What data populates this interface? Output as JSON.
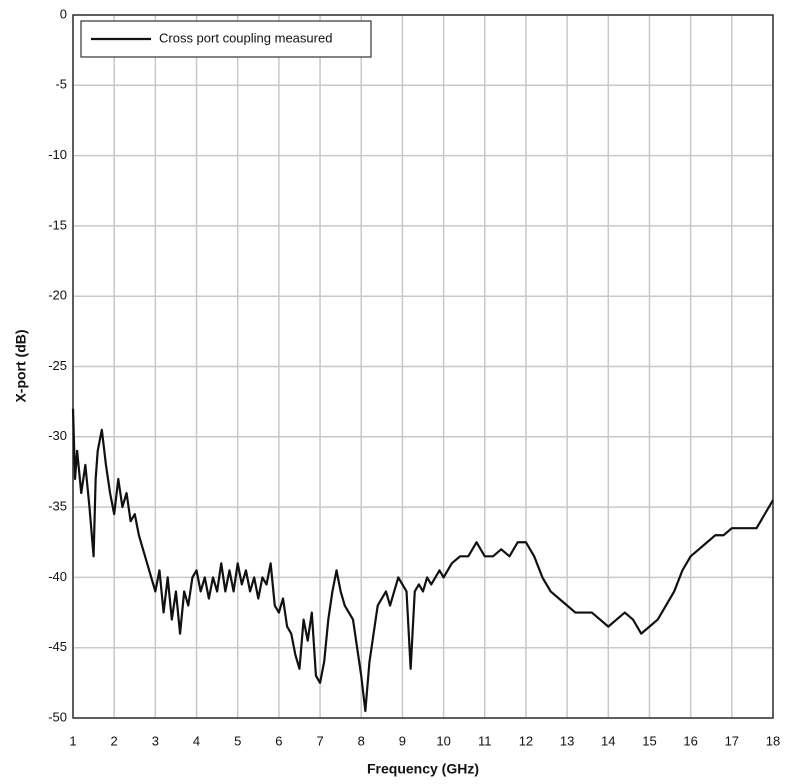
{
  "chart_data": {
    "type": "line",
    "xlabel": "Frequency (GHz)",
    "ylabel": "X-port (dB)",
    "x": [
      1.0,
      1.05,
      1.1,
      1.2,
      1.3,
      1.4,
      1.5,
      1.55,
      1.6,
      1.7,
      1.8,
      1.9,
      2.0,
      2.1,
      2.2,
      2.3,
      2.4,
      2.5,
      2.6,
      2.7,
      2.8,
      2.9,
      3.0,
      3.1,
      3.2,
      3.3,
      3.4,
      3.5,
      3.6,
      3.7,
      3.8,
      3.9,
      4.0,
      4.1,
      4.2,
      4.3,
      4.4,
      4.5,
      4.6,
      4.7,
      4.8,
      4.9,
      5.0,
      5.1,
      5.2,
      5.3,
      5.4,
      5.5,
      5.6,
      5.7,
      5.8,
      5.9,
      6.0,
      6.1,
      6.2,
      6.3,
      6.4,
      6.5,
      6.6,
      6.7,
      6.8,
      6.9,
      7.0,
      7.1,
      7.2,
      7.3,
      7.4,
      7.5,
      7.6,
      7.7,
      7.8,
      7.9,
      8.0,
      8.1,
      8.2,
      8.3,
      8.4,
      8.5,
      8.6,
      8.7,
      8.8,
      8.9,
      9.0,
      9.1,
      9.2,
      9.3,
      9.4,
      9.5,
      9.6,
      9.7,
      9.8,
      9.9,
      10.0,
      10.2,
      10.4,
      10.6,
      10.8,
      11.0,
      11.2,
      11.4,
      11.6,
      11.8,
      12.0,
      12.2,
      12.4,
      12.6,
      12.8,
      13.0,
      13.2,
      13.4,
      13.6,
      13.8,
      14.0,
      14.2,
      14.4,
      14.6,
      14.8,
      15.0,
      15.2,
      15.4,
      15.6,
      15.8,
      16.0,
      16.2,
      16.4,
      16.6,
      16.8,
      17.0,
      17.2,
      17.4,
      17.6,
      17.8,
      18.0
    ],
    "series": [
      {
        "name": "Cross port coupling measured",
        "color": "#111111",
        "values": [
          -28,
          -33,
          -31,
          -34,
          -32,
          -35,
          -38.5,
          -33,
          -31,
          -29.5,
          -32,
          -34,
          -35.5,
          -33,
          -35,
          -34,
          -36,
          -35.5,
          -37,
          -38,
          -39,
          -40,
          -41,
          -39.5,
          -42.5,
          -40,
          -43,
          -41,
          -44,
          -41,
          -42,
          -40,
          -39.5,
          -41,
          -40,
          -41.5,
          -40,
          -41,
          -39,
          -41,
          -39.5,
          -41,
          -39,
          -40.5,
          -39.5,
          -41,
          -40,
          -41.5,
          -40,
          -40.5,
          -39,
          -42,
          -42.5,
          -41.5,
          -43.5,
          -44,
          -45.5,
          -46.5,
          -43,
          -44.5,
          -42.5,
          -47,
          -47.5,
          -46,
          -43,
          -41,
          -39.5,
          -41,
          -42,
          -42.5,
          -43,
          -45,
          -47,
          -49.5,
          -46,
          -44,
          -42,
          -41.5,
          -41,
          -42,
          -41,
          -40,
          -40.5,
          -41,
          -46.5,
          -41,
          -40.5,
          -41,
          -40,
          -40.5,
          -40,
          -39.5,
          -40,
          -39,
          -38.5,
          -38.5,
          -37.5,
          -38.5,
          -38.5,
          -38,
          -38.5,
          -37.5,
          -37.5,
          -38.5,
          -40,
          -41,
          -41.5,
          -42,
          -42.5,
          -42.5,
          -42.5,
          -43,
          -43.5,
          -43,
          -42.5,
          -43,
          -44,
          -43.5,
          -43,
          -42,
          -41,
          -39.5,
          -38.5,
          -38,
          -37.5,
          -37,
          -37,
          -36.5,
          -36.5,
          -36.5,
          -36.5,
          -35.5,
          -34.5
        ]
      }
    ],
    "xlim": [
      1,
      18
    ],
    "xticks": [
      1,
      2,
      3,
      4,
      5,
      6,
      7,
      8,
      9,
      10,
      11,
      12,
      13,
      14,
      15,
      16,
      17,
      18
    ],
    "ylim": [
      -50,
      0
    ],
    "yticks": [
      0,
      -5,
      -10,
      -15,
      -20,
      -25,
      -30,
      -35,
      -40,
      -45,
      -50
    ],
    "grid": true,
    "legend": "upper left"
  }
}
